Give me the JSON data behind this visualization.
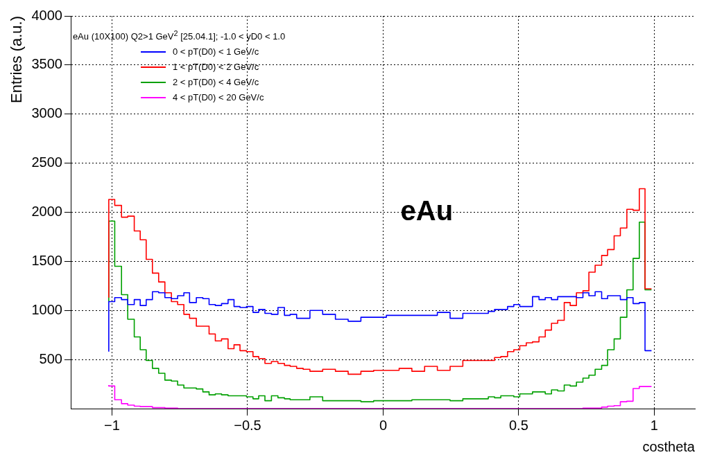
{
  "chart_data": {
    "type": "step",
    "xlabel": "costheta",
    "ylabel": "Entries (a.u.)",
    "legend_title": "eAu (10X100) Q2>1 GeV$^{2}$ [25.04.1]; -1.0 < yD0 < 1.0",
    "annotations": [
      "eAu"
    ],
    "x": [
      -1.012,
      -0.99,
      -0.965,
      -0.942,
      -0.918,
      -0.896,
      -0.874,
      -0.851,
      -0.828,
      -0.805,
      -0.781,
      -0.758,
      -0.735,
      -0.714,
      -0.689,
      -0.665,
      -0.642,
      -0.619,
      -0.596,
      -0.572,
      -0.55,
      -0.528,
      -0.504,
      -0.48,
      -0.459,
      -0.436,
      -0.412,
      -0.388,
      -0.364,
      -0.343,
      -0.319,
      -0.295,
      -0.27,
      -0.223,
      -0.176,
      -0.129,
      -0.082,
      -0.035,
      0.012,
      0.059,
      0.106,
      0.153,
      0.2,
      0.247,
      0.294,
      0.341,
      0.388,
      0.411,
      0.434,
      0.459,
      0.482,
      0.504,
      0.528,
      0.551,
      0.575,
      0.598,
      0.621,
      0.644,
      0.668,
      0.69,
      0.713,
      0.737,
      0.759,
      0.782,
      0.806,
      0.828,
      0.852,
      0.875,
      0.899,
      0.922,
      0.945,
      0.966,
      0.99
    ],
    "series": [
      {
        "name": "0 < pT(D0) < 1 GeV/c",
        "color": "#0000ff",
        "values": [
          580,
          1090,
          1130,
          1110,
          1060,
          1110,
          1050,
          1110,
          1190,
          1180,
          1130,
          1120,
          1150,
          1180,
          1080,
          1130,
          1120,
          1060,
          1050,
          1070,
          1110,
          1040,
          1030,
          1040,
          980,
          1010,
          970,
          960,
          1030,
          950,
          960,
          920,
          920,
          1000,
          960,
          910,
          890,
          930,
          930,
          950,
          950,
          950,
          950,
          980,
          920,
          970,
          970,
          990,
          1010,
          1010,
          1040,
          1060,
          1040,
          1040,
          1140,
          1110,
          1130,
          1110,
          1140,
          1140,
          1140,
          1130,
          1180,
          1150,
          1190,
          1120,
          1150,
          1150,
          1110,
          1130,
          1070,
          1080,
          590
        ]
      },
      {
        "name": "1 < pT(D0) < 2 GeV/c",
        "color": "#ff0000",
        "values": [
          1130,
          2130,
          2070,
          1950,
          1960,
          1810,
          1720,
          1520,
          1380,
          1290,
          1180,
          1090,
          1060,
          960,
          920,
          840,
          840,
          760,
          690,
          710,
          610,
          650,
          590,
          580,
          530,
          510,
          460,
          480,
          460,
          440,
          430,
          410,
          400,
          380,
          400,
          380,
          350,
          380,
          390,
          390,
          410,
          380,
          430,
          390,
          430,
          490,
          490,
          490,
          520,
          530,
          580,
          600,
          640,
          670,
          680,
          730,
          800,
          870,
          900,
          1080,
          1050,
          1180,
          1200,
          1390,
          1460,
          1560,
          1620,
          1760,
          1840,
          2030,
          2020,
          2240,
          1220
        ]
      },
      {
        "name": "2 < pT(D0) < 4 GeV/c",
        "color": "#00a000",
        "values": [
          1090,
          1910,
          1450,
          1160,
          910,
          730,
          600,
          490,
          410,
          360,
          290,
          280,
          240,
          210,
          210,
          200,
          170,
          140,
          150,
          140,
          130,
          130,
          130,
          120,
          100,
          130,
          80,
          130,
          110,
          100,
          90,
          90,
          90,
          120,
          80,
          80,
          80,
          70,
          80,
          80,
          80,
          90,
          90,
          90,
          80,
          100,
          100,
          120,
          110,
          130,
          130,
          120,
          150,
          150,
          170,
          170,
          150,
          190,
          180,
          240,
          230,
          270,
          310,
          340,
          400,
          440,
          600,
          710,
          930,
          1210,
          1530,
          1900,
          1210
        ]
      },
      {
        "name": "4 < pT(D0) < 20 GeV/c",
        "color": "#ff00ff",
        "values": [
          240,
          230,
          90,
          50,
          35,
          25,
          20,
          20,
          10,
          10,
          5,
          5,
          0,
          0,
          0,
          0,
          0,
          0,
          0,
          0,
          0,
          0,
          0,
          0,
          0,
          0,
          0,
          0,
          0,
          0,
          0,
          0,
          0,
          0,
          0,
          0,
          0,
          0,
          0,
          0,
          0,
          0,
          0,
          0,
          0,
          0,
          0,
          0,
          0,
          0,
          0,
          0,
          0,
          0,
          0,
          0,
          0,
          0,
          0,
          0,
          0,
          0,
          5,
          5,
          5,
          15,
          25,
          30,
          70,
          75,
          205,
          225,
          225
        ]
      }
    ],
    "xlim": [
      -1.15,
      1.15
    ],
    "xticks": [
      {
        "value": -1,
        "label": "−1"
      },
      {
        "value": -0.5,
        "label": "−0.5"
      },
      0,
      0.5,
      1
    ],
    "ylim": [
      0,
      4000
    ],
    "yticks": [
      500,
      1000,
      1500,
      2000,
      2500,
      3000,
      3500,
      4000
    ],
    "grid": true,
    "legend": "top left",
    "marker": "none"
  }
}
